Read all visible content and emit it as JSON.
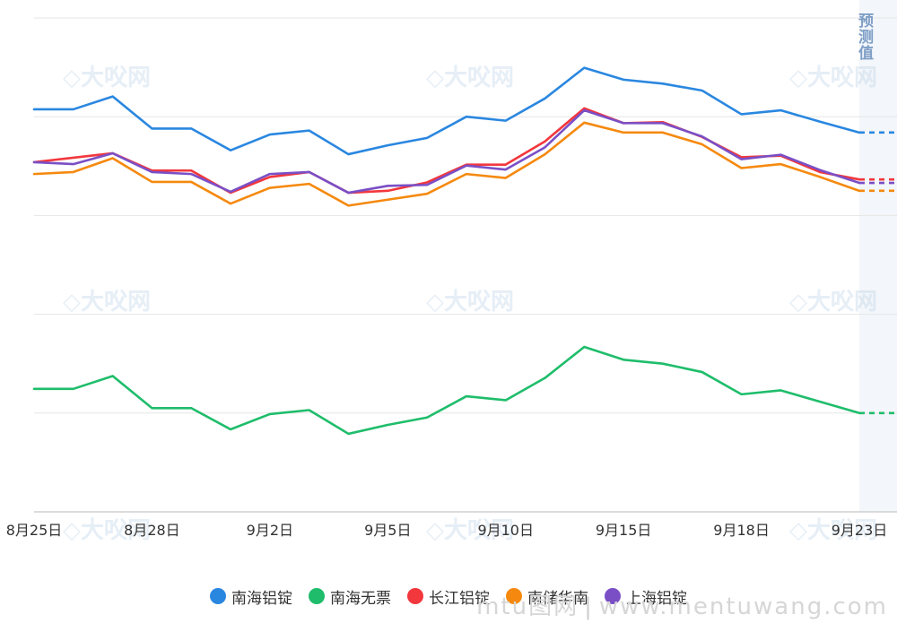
{
  "chart_data": {
    "type": "line",
    "categories": [
      "8月25日",
      "",
      "",
      "8月28日",
      "",
      "",
      "9月2日",
      "",
      "",
      "9月5日",
      "",
      "",
      "9月10日",
      "",
      "",
      "9月15日",
      "",
      "",
      "9月18日",
      "",
      "",
      "9月23日"
    ],
    "x_index": [
      0,
      1,
      2,
      3,
      4,
      5,
      6,
      7,
      8,
      9,
      10,
      11,
      12,
      13,
      14,
      15,
      16,
      17,
      18,
      19,
      20,
      21,
      22
    ],
    "ylim": [
      0,
      100
    ],
    "y_gridlines": [
      0,
      20,
      40,
      60,
      80,
      100
    ],
    "grid": true,
    "legend_position": "bottom-center",
    "forecast_label": "预测值",
    "series": [
      {
        "name": "南海铝锭",
        "color": "#2a87e0",
        "values": [
          81.5,
          81.5,
          84.1,
          77.6,
          77.6,
          73.2,
          76.4,
          77.2,
          72.4,
          74.2,
          75.7,
          80.0,
          79.2,
          83.7,
          89.9,
          87.5,
          86.7,
          85.3,
          80.5,
          81.3,
          79.0,
          76.8
        ],
        "forecast": 76.8
      },
      {
        "name": "南海无票",
        "color": "#1fbd6b",
        "values": [
          24.9,
          24.9,
          27.5,
          21.0,
          21.0,
          16.7,
          19.8,
          20.6,
          15.8,
          17.6,
          19.1,
          23.4,
          22.6,
          27.1,
          33.4,
          30.8,
          30.0,
          28.3,
          23.8,
          24.6,
          22.3,
          20.0
        ],
        "forecast": 20.0
      },
      {
        "name": "长江铝锭",
        "color": "#f2373d",
        "values": [
          70.8,
          71.7,
          72.6,
          69.1,
          69.1,
          64.6,
          67.8,
          68.8,
          64.6,
          65.0,
          66.7,
          70.3,
          70.3,
          75.0,
          81.7,
          78.7,
          78.9,
          75.9,
          71.8,
          72.1,
          68.8,
          67.3
        ],
        "forecast": 67.3
      },
      {
        "name": "南储华南",
        "color": "#f5890f",
        "values": [
          68.4,
          68.8,
          71.6,
          66.8,
          66.8,
          62.4,
          65.6,
          66.4,
          62.0,
          63.2,
          64.4,
          68.4,
          67.6,
          72.4,
          78.8,
          76.8,
          76.8,
          74.4,
          69.6,
          70.4,
          67.8,
          65.0
        ],
        "forecast": 65.0
      },
      {
        "name": "上海铝锭",
        "color": "#7a4fc6",
        "values": [
          70.8,
          70.4,
          72.6,
          68.8,
          68.4,
          64.8,
          68.4,
          68.8,
          64.6,
          66.0,
          66.2,
          70.1,
          69.3,
          73.8,
          81.3,
          78.7,
          78.7,
          76.0,
          71.4,
          72.3,
          69.2,
          66.6
        ],
        "forecast": 66.6
      }
    ]
  },
  "watermark": {
    "logo_text": "大㕮网",
    "site_text": "mtu图网",
    "site_url": "www.mentuwang.com"
  }
}
